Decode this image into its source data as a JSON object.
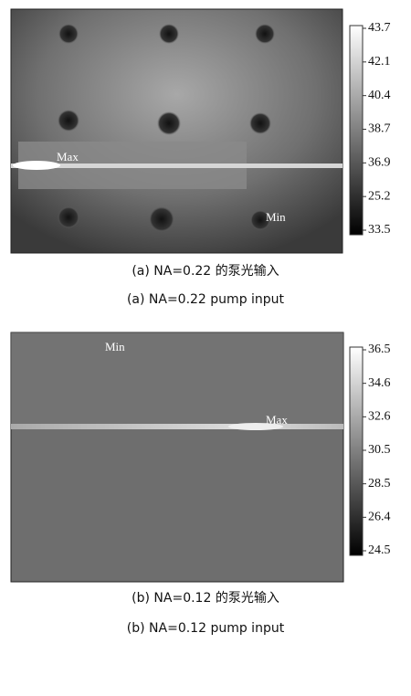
{
  "figure_a": {
    "image_labels": {
      "max": "Max",
      "min": "Min"
    },
    "colorbar_labels": [
      "43.7",
      "42.1",
      "40.4",
      "38.7",
      "36.9",
      "25.2",
      "33.5"
    ],
    "caption_cn": "(a) NA=0.22 的泵光输入",
    "caption_en": "(a) NA=0.22 pump input"
  },
  "figure_b": {
    "image_labels": {
      "min": "Min",
      "max": "Max"
    },
    "colorbar_labels": [
      "36.5",
      "34.6",
      "32.6",
      "30.5",
      "28.5",
      "26.4",
      "24.5"
    ],
    "caption_cn": "(b) NA=0.12 的泵光输入",
    "caption_en": "(b) NA=0.12 pump input"
  }
}
